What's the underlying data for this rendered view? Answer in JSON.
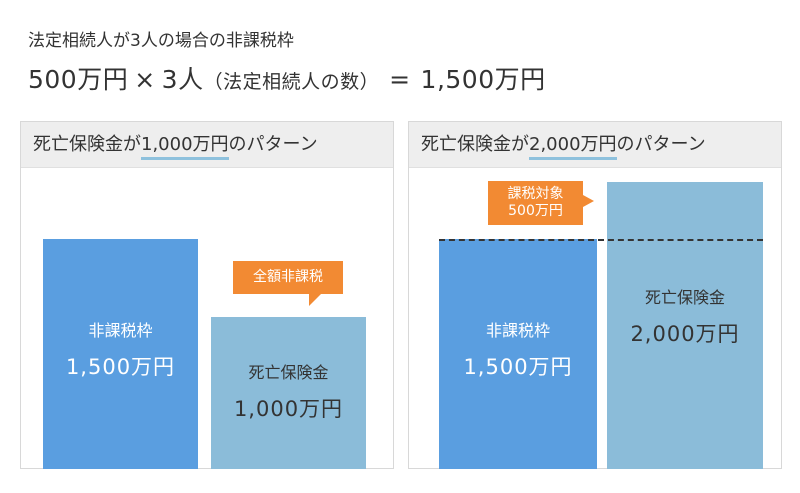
{
  "header": {
    "subtitle": "法定相続人が3人の場合の非課税枠",
    "amount": "500万円",
    "mult": "×",
    "count": "3人",
    "count_note": "（法定相続人の数）",
    "eq": "=",
    "total": "1,500万円"
  },
  "panel_left": {
    "title_pre": "死亡保険金が",
    "title_hl": "1,000万円",
    "title_post": "のパターン",
    "box1_label": "非課税枠",
    "box1_value": "1,500万円",
    "box2_label": "死亡保険金",
    "box2_value": "1,000万円",
    "callout": "全額非課税"
  },
  "panel_right": {
    "title_pre": "死亡保険金が",
    "title_hl": "2,000万円",
    "title_post": "のパターン",
    "box1_label": "非課税枠",
    "box1_value": "1,500万円",
    "box2_label": "死亡保険金",
    "box2_value": "2,000万円",
    "callout_line1": "課税対象",
    "callout_line2": "500万円"
  },
  "colors": {
    "exempt_bar": "#5a9ee0",
    "insurance_bar": "#8bbcd9",
    "callout": "#f28a33",
    "highlight": "#8ec1dd"
  }
}
